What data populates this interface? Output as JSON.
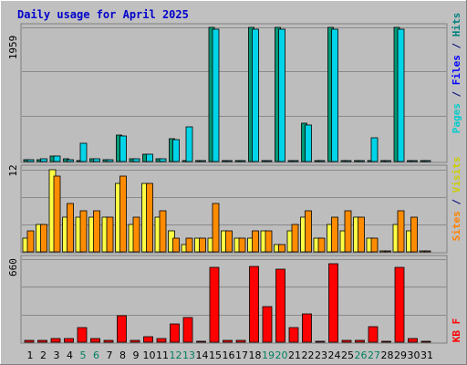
{
  "chart_data": {
    "type": "bar",
    "title": "Daily usage for April 2025",
    "categories": [
      "1",
      "2",
      "3",
      "4",
      "5",
      "6",
      "7",
      "8",
      "9",
      "10",
      "11",
      "12",
      "13",
      "14",
      "15",
      "16",
      "17",
      "18",
      "19",
      "20",
      "21",
      "22",
      "23",
      "24",
      "25",
      "26",
      "27",
      "28",
      "29",
      "30",
      "31"
    ],
    "weekend_days": [
      "5",
      "6",
      "12",
      "13",
      "19",
      "20",
      "26",
      "27"
    ],
    "panels": [
      {
        "name": "top",
        "ymax_label": "1959",
        "ymax": 1959,
        "legend": [
          {
            "text": "Pages",
            "color": "#00cccc"
          },
          {
            "text": " / ",
            "color": "#000080"
          },
          {
            "text": "Files",
            "color": "#0000ff"
          },
          {
            "text": " / ",
            "color": "#000080"
          },
          {
            "text": "Hits",
            "color": "#008080"
          }
        ],
        "series": [
          {
            "name": "Hits",
            "color": "#009977",
            "values": [
              21,
              29,
              74,
              41,
              0,
              34,
              32,
              382,
              35,
              112,
              45,
              334,
              0,
              0,
              1959,
              0,
              0,
              1959,
              0,
              1959,
              0,
              556,
              0,
              1959,
              0,
              0,
              0,
              0,
              1959,
              0,
              0
            ]
          },
          {
            "name": "Pages",
            "color": "#00d4e8",
            "values": [
              21,
              34,
              74,
              28,
              271,
              34,
              28,
              370,
              35,
              112,
              45,
              324,
              501,
              0,
              1935,
              0,
              0,
              1935,
              0,
              1935,
              0,
              530,
              0,
              1935,
              0,
              0,
              340,
              0,
              1935,
              0,
              0
            ]
          },
          {
            "name": "Files",
            "color": "#3399ff",
            "values": [
              21,
              34,
              74,
              28,
              271,
              34,
              28,
              370,
              35,
              112,
              45,
              324,
              501,
              0,
              1935,
              0,
              0,
              1935,
              0,
              1935,
              0,
              530,
              0,
              1935,
              0,
              0,
              340,
              0,
              1935,
              0,
              0
            ]
          }
        ]
      },
      {
        "name": "middle",
        "ymax_label": "12",
        "ymax": 12,
        "legend": [
          {
            "text": "Sites",
            "color": "#ff8000"
          },
          {
            "text": " / ",
            "color": "#000080"
          },
          {
            "text": "Visits",
            "color": "#ffff00"
          }
        ],
        "series": [
          {
            "name": "Visits",
            "color": "#ffff44",
            "values": [
              2,
              4,
              12,
              5,
              5,
              5,
              5,
              10,
              4,
              10,
              5,
              3,
              1,
              2,
              2,
              3,
              2,
              2,
              3,
              1,
              3,
              5,
              2,
              4,
              3,
              5,
              2,
              0,
              4,
              3,
              0
            ]
          },
          {
            "name": "Sites",
            "color": "#ff8c00",
            "values": [
              3,
              4,
              11,
              7,
              6,
              6,
              5,
              11,
              5,
              10,
              6,
              2,
              2,
              2,
              7,
              3,
              2,
              3,
              3,
              1,
              4,
              6,
              2,
              5,
              6,
              5,
              2,
              0,
              6,
              5,
              0
            ]
          }
        ]
      },
      {
        "name": "bottom",
        "ymax_label": "660",
        "ymax": 660,
        "legend": [
          {
            "text": "KB F",
            "color": "#ff0000"
          }
        ],
        "series": [
          {
            "name": "KB F",
            "color": "#ff0000",
            "values": [
              14,
              14,
              28,
              28,
              115,
              28,
              14,
              212,
              14,
              42,
              28,
              144,
              198,
              0,
              592,
              14,
              14,
              600,
              280,
              582,
              115,
              222,
              0,
              622,
              14,
              14,
              120,
              0,
              592,
              28,
              0
            ]
          }
        ]
      }
    ]
  }
}
